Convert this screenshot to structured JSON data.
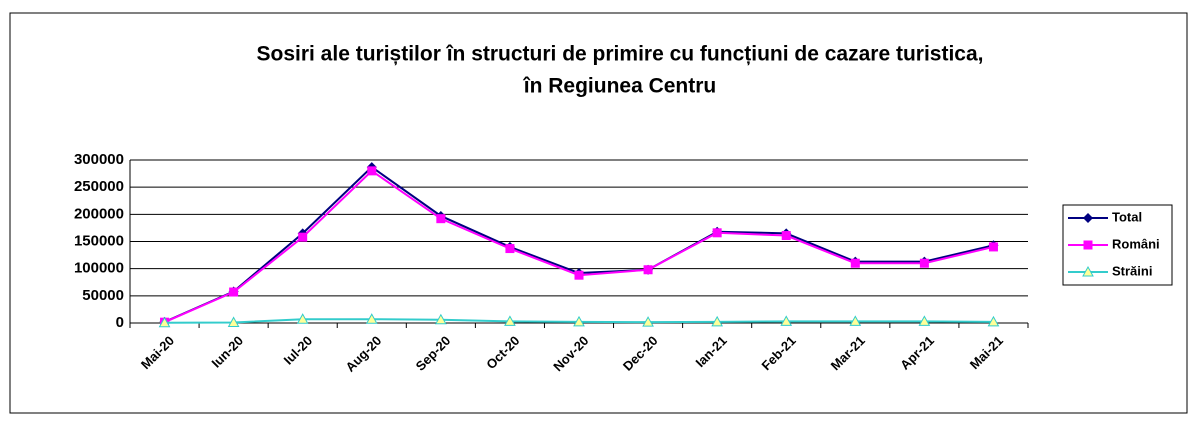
{
  "chart_data": {
    "type": "line",
    "title": [
      "Sosiri ale turiștilor în structuri de primire cu funcțiuni de cazare turistica,",
      "în Regiunea Centru"
    ],
    "categories": [
      "Mai-20",
      "Iun-20",
      "Iul-20",
      "Aug-20",
      "Sep-20",
      "Oct-20",
      "Nov-20",
      "Dec-20",
      "Ian-21",
      "Feb-21",
      "Mar-21",
      "Apr-21",
      "Mai-21"
    ],
    "series": [
      {
        "name": "Total",
        "color": "#000080",
        "marker": "diamond",
        "values": [
          2000,
          58000,
          165000,
          287000,
          197000,
          140000,
          92000,
          98000,
          168000,
          165000,
          113000,
          113000,
          143000
        ]
      },
      {
        "name": "Români",
        "color": "#ff00ff",
        "marker": "square",
        "values": [
          1500,
          57000,
          158000,
          280000,
          192000,
          137000,
          88000,
          98000,
          166000,
          161000,
          110000,
          110000,
          140000
        ]
      },
      {
        "name": "Străini",
        "color": "#33cccc",
        "marker": "triangle",
        "values": [
          500,
          1000,
          7000,
          7000,
          6000,
          3000,
          2000,
          1500,
          2000,
          3000,
          3000,
          3000,
          2000
        ]
      }
    ],
    "ylim": [
      0,
      300000
    ],
    "yticks": [
      0,
      50000,
      100000,
      150000,
      200000,
      250000,
      300000
    ],
    "grid": true,
    "legend": "right"
  }
}
